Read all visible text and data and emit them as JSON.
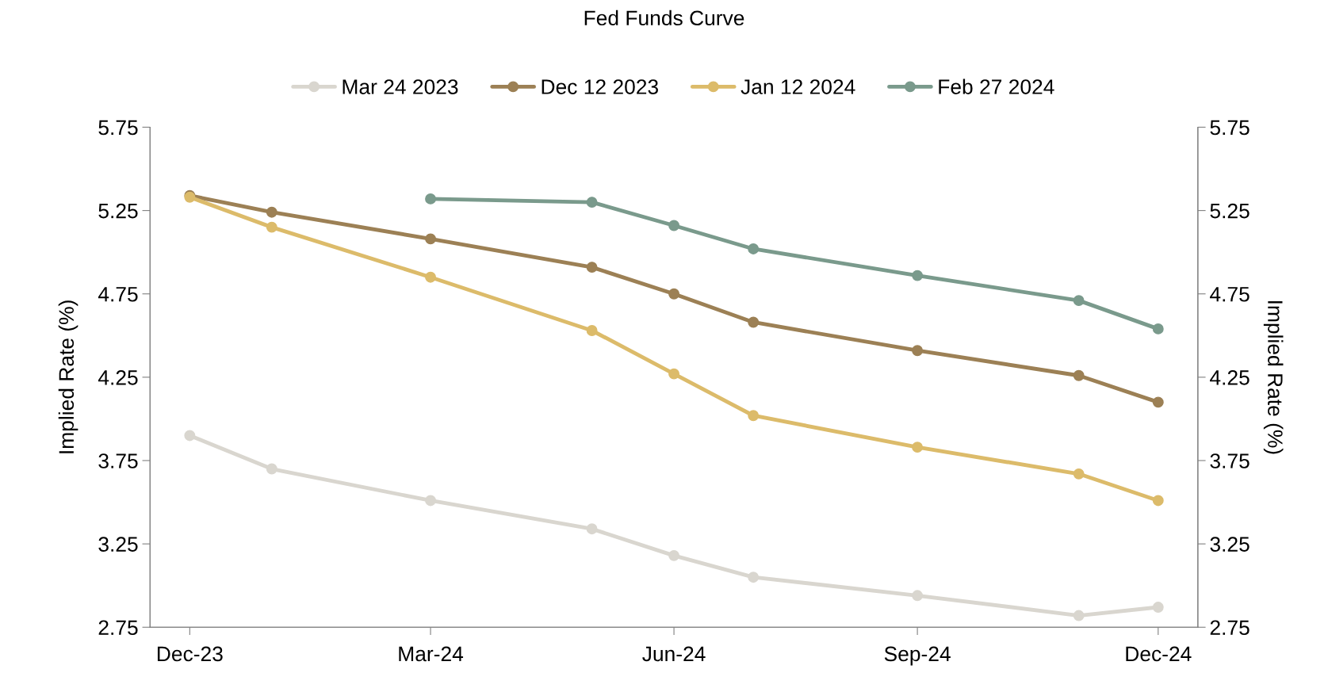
{
  "chart_data": {
    "type": "line",
    "title": "Fed Funds Curve",
    "ylabel": "Implied Rate (%)",
    "y2label": "Implied Rate (%)",
    "x": [
      "2023-12",
      "2024-01",
      "2024-03",
      "2024-05",
      "2024-06",
      "2024-07",
      "2024-09",
      "2024-11",
      "2024-12"
    ],
    "xlim": [
      "2023-11-16",
      "2024-12-16"
    ],
    "xticks": [
      {
        "value": "2023-12",
        "label": "Dec-23"
      },
      {
        "value": "2024-03",
        "label": "Mar-24"
      },
      {
        "value": "2024-06",
        "label": "Jun-24"
      },
      {
        "value": "2024-09",
        "label": "Sep-24"
      },
      {
        "value": "2024-12",
        "label": "Dec-24"
      }
    ],
    "ylim": [
      2.75,
      5.75
    ],
    "yticks": [
      2.75,
      3.25,
      3.75,
      4.25,
      4.75,
      5.25,
      5.75
    ],
    "y2lim": [
      2.75,
      5.75
    ],
    "y2ticks": [
      2.75,
      3.25,
      3.75,
      4.25,
      4.75,
      5.25,
      5.75
    ],
    "series": [
      {
        "name": "Mar 24 2023",
        "color": "#d9d6cf",
        "values": [
          3.9,
          3.7,
          3.51,
          3.34,
          3.18,
          3.05,
          2.94,
          2.82,
          2.87
        ]
      },
      {
        "name": "Dec 12 2023",
        "color": "#9c8055",
        "values": [
          5.34,
          5.24,
          5.08,
          4.91,
          4.75,
          4.58,
          4.41,
          4.26,
          4.1
        ]
      },
      {
        "name": "Jan 12 2024",
        "color": "#dcbb6a",
        "values": [
          5.33,
          5.15,
          4.85,
          4.53,
          4.27,
          4.02,
          3.83,
          3.67,
          3.51
        ]
      },
      {
        "name": "Feb 27 2024",
        "color": "#7a9a8c",
        "values": [
          null,
          null,
          5.32,
          5.3,
          5.16,
          5.02,
          4.86,
          4.71,
          4.54
        ]
      }
    ],
    "marker": "circle",
    "line_style": "solid",
    "grid": false,
    "legend": "top"
  }
}
